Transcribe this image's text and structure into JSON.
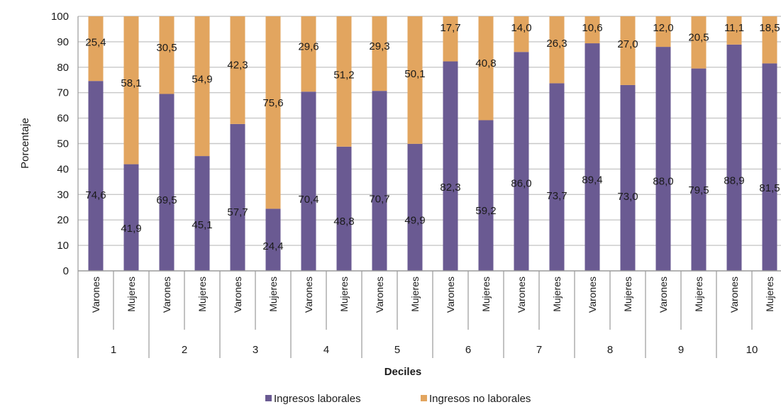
{
  "chart_data": {
    "type": "bar",
    "stacked": true,
    "xlabel": "Deciles",
    "ylabel": "Porcentaje",
    "ylim": [
      0,
      100
    ],
    "yticks": [
      0,
      10,
      20,
      30,
      40,
      50,
      60,
      70,
      80,
      90,
      100
    ],
    "grid": true,
    "legend_position": "bottom",
    "groups": [
      "1",
      "2",
      "3",
      "4",
      "5",
      "6",
      "7",
      "8",
      "9",
      "10"
    ],
    "subcategories": [
      "Varones",
      "Mujeres"
    ],
    "series": [
      {
        "name": "Ingresos laborales",
        "color": "#6a5a92",
        "values": [
          74.6,
          41.9,
          69.5,
          45.1,
          57.7,
          24.4,
          70.4,
          48.8,
          70.7,
          49.9,
          82.3,
          59.2,
          86.0,
          73.7,
          89.4,
          73.0,
          88.0,
          79.5,
          88.9,
          81.5
        ],
        "labels": [
          "74,6",
          "41,9",
          "69,5",
          "45,1",
          "57,7",
          "24,4",
          "70,4",
          "48,8",
          "70,7",
          "49,9",
          "82,3",
          "59,2",
          "86,0",
          "73,7",
          "89,4",
          "73,0",
          "88,0",
          "79,5",
          "88,9",
          "81,5"
        ]
      },
      {
        "name": "Ingresos no laborales",
        "color": "#e2a55f",
        "values": [
          25.4,
          58.1,
          30.5,
          54.9,
          42.3,
          75.6,
          29.6,
          51.2,
          29.3,
          50.1,
          17.7,
          40.8,
          14.0,
          26.3,
          10.6,
          27.0,
          12.0,
          20.5,
          11.1,
          18.5
        ],
        "labels": [
          "25,4",
          "58,1",
          "30,5",
          "54,9",
          "42,3",
          "75,6",
          "29,6",
          "51,2",
          "29,3",
          "50,1",
          "17,7",
          "40,8",
          "14,0",
          "26,3",
          "10,6",
          "27,0",
          "12,0",
          "20,5",
          "11,1",
          "18,5"
        ]
      }
    ]
  }
}
